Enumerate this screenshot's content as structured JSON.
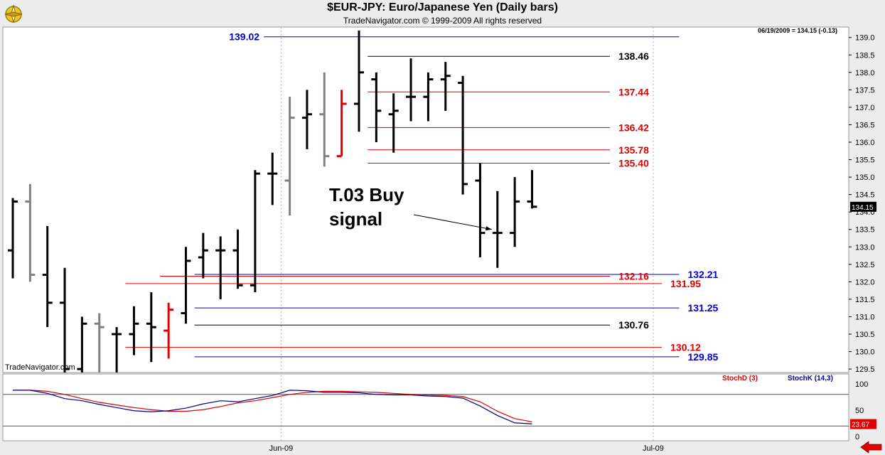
{
  "header": {
    "title": "$EUR-JPY:  Euro/Japanese Yen  (Daily bars)",
    "subtitle": "TradeNavigator.com © 1999-2009 All rights reserved",
    "last_quote": "06/19/2009 = 134.15 (-0.13)",
    "watermark": "TradeNavigator.com",
    "logo_icon": "compass-logo-icon"
  },
  "colors": {
    "black_bar": "#000000",
    "gray_bar": "#808080",
    "red_bar": "#e00000",
    "blue_level": "#0000cc",
    "red_level": "#e00000",
    "black_level": "#000000",
    "stochD": "#dd0000",
    "stochK": "#000088",
    "panel_bg": "#ffffff"
  },
  "chart_data": [
    {
      "type": "ohlc",
      "title": "$EUR-JPY:  Euro/Japanese Yen  (Daily bars)",
      "y_range": [
        129.4,
        139.3
      ],
      "y_ticks": [
        "129.5",
        "130.0",
        "130.5",
        "131.0",
        "131.5",
        "132.0",
        "132.5",
        "133.0",
        "133.5",
        "134.0",
        "134.5",
        "135.0",
        "135.5",
        "136.0",
        "136.5",
        "137.0",
        "137.5",
        "138.0",
        "138.5",
        "139.0"
      ],
      "x_labels": [
        {
          "label": "Jun-09",
          "index": 15.5
        },
        {
          "label": "Jul-09",
          "index": 37
        }
      ],
      "grid_vertical_at_index": [
        15.5,
        37
      ],
      "bars": [
        {
          "h": 134.4,
          "l": 132.1,
          "o": 132.9,
          "c": 134.3,
          "color": "black"
        },
        {
          "h": 134.8,
          "l": 132.0,
          "o": 134.3,
          "c": 132.2,
          "color": "gray"
        },
        {
          "h": 133.6,
          "l": 130.7,
          "o": 132.2,
          "c": 131.4,
          "color": "black"
        },
        {
          "h": 132.4,
          "l": 129.4,
          "o": 131.4,
          "c": 129.5,
          "color": "black"
        },
        {
          "h": 131.0,
          "l": 129.4,
          "o": 129.5,
          "c": 130.8,
          "color": "black"
        },
        {
          "h": 131.1,
          "l": 129.4,
          "o": 130.8,
          "c": 130.7,
          "color": "gray"
        },
        {
          "h": 130.7,
          "l": 129.4,
          "o": 130.5,
          "c": 130.5,
          "color": "black"
        },
        {
          "h": 131.3,
          "l": 129.9,
          "o": 130.5,
          "c": 130.8,
          "color": "black"
        },
        {
          "h": 131.7,
          "l": 129.7,
          "o": 130.8,
          "c": 130.7,
          "color": "black"
        },
        {
          "h": 131.4,
          "l": 129.8,
          "o": 130.6,
          "c": 131.2,
          "color": "red"
        },
        {
          "h": 133.0,
          "l": 130.8,
          "o": 131.1,
          "c": 132.6,
          "color": "black"
        },
        {
          "h": 133.4,
          "l": 132.1,
          "o": 132.7,
          "c": 132.9,
          "color": "black"
        },
        {
          "h": 133.3,
          "l": 131.5,
          "o": 132.9,
          "c": 132.9,
          "color": "black"
        },
        {
          "h": 133.5,
          "l": 131.8,
          "o": 132.9,
          "c": 131.9,
          "color": "black"
        },
        {
          "h": 135.2,
          "l": 131.7,
          "o": 131.9,
          "c": 135.1,
          "color": "black"
        },
        {
          "h": 135.7,
          "l": 134.2,
          "o": 135.1,
          "c": 135.1,
          "color": "black"
        },
        {
          "h": 137.3,
          "l": 133.9,
          "o": 134.9,
          "c": 136.7,
          "color": "gray"
        },
        {
          "h": 137.5,
          "l": 135.8,
          "o": 136.7,
          "c": 136.8,
          "color": "black"
        },
        {
          "h": 138.0,
          "l": 135.3,
          "o": 136.8,
          "c": 135.6,
          "color": "gray"
        },
        {
          "h": 137.5,
          "l": 135.6,
          "o": 135.6,
          "c": 137.1,
          "color": "red"
        },
        {
          "h": 139.2,
          "l": 136.3,
          "o": 137.1,
          "c": 138.0,
          "color": "black"
        },
        {
          "h": 138.0,
          "l": 136.0,
          "o": 137.8,
          "c": 136.9,
          "color": "black"
        },
        {
          "h": 137.4,
          "l": 135.7,
          "o": 136.8,
          "c": 136.9,
          "color": "black"
        },
        {
          "h": 138.4,
          "l": 136.6,
          "o": 137.3,
          "c": 137.3,
          "color": "black"
        },
        {
          "h": 138.0,
          "l": 136.6,
          "o": 137.3,
          "c": 137.8,
          "color": "black"
        },
        {
          "h": 138.3,
          "l": 136.9,
          "o": 137.8,
          "c": 137.9,
          "color": "black"
        },
        {
          "h": 137.9,
          "l": 134.5,
          "o": 137.7,
          "c": 134.8,
          "color": "black"
        },
        {
          "h": 135.4,
          "l": 132.7,
          "o": 134.9,
          "c": 133.4,
          "color": "black"
        },
        {
          "h": 134.6,
          "l": 132.4,
          "o": 133.4,
          "c": 133.4,
          "color": "black"
        },
        {
          "h": 135.0,
          "l": 133.0,
          "o": 133.4,
          "c": 134.3,
          "color": "black"
        },
        {
          "h": 135.2,
          "l": 134.1,
          "o": 134.3,
          "c": 134.15,
          "color": "black"
        }
      ],
      "levels": [
        {
          "value": 139.02,
          "label": "139.02",
          "color": "blue",
          "from": 14.5,
          "to": 38.5,
          "label_pos": "left"
        },
        {
          "value": 138.46,
          "label": "138.46",
          "color": "black",
          "from": 20.5,
          "to": 34.5,
          "label_pos": "right"
        },
        {
          "value": 137.44,
          "label": "137.44",
          "color": "red",
          "from": 20.5,
          "to": 34.5,
          "label_pos": "right"
        },
        {
          "value": 136.42,
          "label": "136.42",
          "color": "red",
          "from": 20.5,
          "to": 34.5,
          "label_pos": "right"
        },
        {
          "value": 135.78,
          "label": "135.78",
          "color": "red",
          "from": 20.5,
          "to": 34.5,
          "label_pos": "right"
        },
        {
          "value": 135.4,
          "label": "135.40",
          "color": "red",
          "from": 20.5,
          "to": 34.5,
          "label_pos": "right"
        },
        {
          "value": 132.21,
          "label": "132.21",
          "color": "blue",
          "from": 10.5,
          "to": 38.5,
          "label_pos": "right"
        },
        {
          "value": 132.16,
          "label": "132.16",
          "color": "red",
          "from": 8.5,
          "to": 34.5,
          "label_pos": "right"
        },
        {
          "value": 131.95,
          "label": "131.95",
          "color": "red",
          "from": 6.5,
          "to": 37.5,
          "label_pos": "right"
        },
        {
          "value": 131.25,
          "label": "131.25",
          "color": "blue",
          "from": 10.5,
          "to": 38.5,
          "label_pos": "right"
        },
        {
          "value": 130.76,
          "label": "130.76",
          "color": "black",
          "from": 10.5,
          "to": 34.5,
          "label_pos": "right"
        },
        {
          "value": 130.12,
          "label": "130.12",
          "color": "red",
          "from": 6.5,
          "to": 37.5,
          "label_pos": "right"
        },
        {
          "value": 129.85,
          "label": "129.85",
          "color": "blue",
          "from": 10.5,
          "to": 38.5,
          "label_pos": "right"
        }
      ],
      "last_price": "134.15",
      "annotation": {
        "line1": "T.03 Buy",
        "line2": "signal",
        "points_to_index": 28,
        "points_to_value": 133.5
      }
    },
    {
      "type": "line",
      "title": "",
      "y_range": [
        0,
        100
      ],
      "y_ticks": [
        "0",
        "50",
        "100"
      ],
      "reference_lines": [
        80,
        20
      ],
      "last_value": "23.67",
      "legend": [
        {
          "label": "StochD (3)",
          "color": "red"
        },
        {
          "label": "StochK (14,3)",
          "color": "blue"
        }
      ],
      "series": [
        {
          "name": "StochD (3)",
          "values": [
            88,
            88,
            86,
            80,
            72,
            65,
            60,
            55,
            51,
            48,
            48,
            51,
            57,
            64,
            68,
            74,
            80,
            84,
            86,
            86,
            85,
            84,
            82,
            80,
            79,
            78,
            76,
            66,
            48,
            34,
            28
          ]
        },
        {
          "name": "StochK (14,3)",
          "values": [
            88,
            88,
            82,
            72,
            68,
            61,
            55,
            49,
            47,
            49,
            54,
            62,
            68,
            66,
            72,
            78,
            88,
            87,
            84,
            84,
            83,
            80,
            79,
            79,
            77,
            76,
            73,
            58,
            40,
            26,
            24
          ]
        }
      ]
    }
  ]
}
